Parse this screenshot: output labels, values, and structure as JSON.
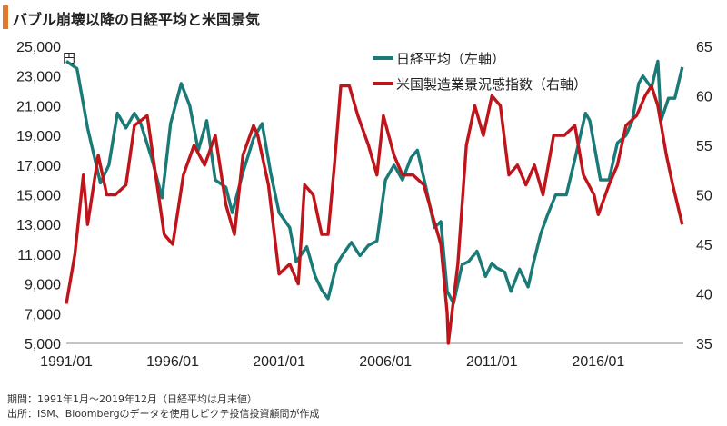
{
  "title": "バブル崩壊以降の日経平均と米国景気",
  "footer": {
    "period": "期間：1991年1月～2019年12月（日経平均は月末値）",
    "source": "出所：ISM、Bloombergのデータを使用しピクテ投信投資顧問が作成"
  },
  "colors": {
    "nikkei": "#1a7a78",
    "ism": "#c0141b",
    "title_accent": "#e07a2a"
  },
  "chart_data": {
    "type": "line",
    "title": "バブル崩壊以降の日経平均と米国景気",
    "xlabel": "",
    "ylabel_left": "円",
    "ylabel_right": "",
    "x_ticks": [
      "1991/01",
      "1996/01",
      "2001/01",
      "2006/01",
      "2011/01",
      "2016/01"
    ],
    "y_left_ticks": [
      "25,000",
      "23,000",
      "21,000",
      "19,000",
      "17,000",
      "15,000",
      "13,000",
      "11,000",
      "9,000",
      "7,000",
      "5,000"
    ],
    "y_right_ticks": [
      "65",
      "60",
      "55",
      "50",
      "45",
      "40",
      "35"
    ],
    "ylim_left": [
      5000,
      25000
    ],
    "ylim_right": [
      35,
      65
    ],
    "xlim": [
      1991.0,
      2020.0
    ],
    "legend_position": "top-right",
    "series": [
      {
        "name": "日経平均（左軸）",
        "axis": "left",
        "x": [
          1991.0,
          1991.5,
          1992.0,
          1992.6,
          1993.0,
          1993.4,
          1993.8,
          1994.2,
          1994.5,
          1995.0,
          1995.5,
          1995.9,
          1996.4,
          1996.8,
          1997.2,
          1997.6,
          1998.0,
          1998.5,
          1998.8,
          1999.3,
          1999.8,
          2000.2,
          2000.6,
          2001.0,
          2001.5,
          2001.8,
          2002.3,
          2002.7,
          2003.0,
          2003.3,
          2003.7,
          2004.0,
          2004.4,
          2004.8,
          2005.2,
          2005.6,
          2006.0,
          2006.4,
          2006.8,
          2007.2,
          2007.5,
          2007.9,
          2008.3,
          2008.6,
          2008.9,
          2009.2,
          2009.6,
          2009.9,
          2010.3,
          2010.7,
          2011.0,
          2011.2,
          2011.6,
          2011.9,
          2012.3,
          2012.7,
          2012.95,
          2013.3,
          2013.6,
          2014.0,
          2014.5,
          2014.9,
          2015.4,
          2015.6,
          2016.1,
          2016.5,
          2016.9,
          2017.3,
          2017.6,
          2017.9,
          2018.1,
          2018.5,
          2018.8,
          2018.95,
          2019.3,
          2019.6,
          2019.95
        ],
        "values": [
          24000,
          23500,
          19500,
          15800,
          17000,
          20500,
          19500,
          20500,
          19800,
          17500,
          14800,
          19800,
          22500,
          21000,
          18000,
          20000,
          16000,
          15500,
          13800,
          16500,
          18800,
          19800,
          16500,
          13800,
          12800,
          10500,
          11500,
          9500,
          8600,
          8000,
          10300,
          11000,
          11800,
          10900,
          11600,
          11900,
          16000,
          17000,
          16000,
          17500,
          18000,
          15500,
          12800,
          13200,
          8500,
          7700,
          10300,
          10500,
          11200,
          9500,
          10400,
          10100,
          9800,
          8500,
          10000,
          8800,
          10400,
          12400,
          13600,
          15000,
          15000,
          17400,
          20500,
          20000,
          16000,
          16000,
          18500,
          19000,
          20000,
          22500,
          23000,
          22200,
          24000,
          20000,
          21500,
          21500,
          23600
        ]
      },
      {
        "name": "米国製造業景況感指数（右軸）",
        "axis": "right",
        "x": [
          1991.0,
          1991.4,
          1991.8,
          1992.0,
          1992.5,
          1992.9,
          1993.3,
          1993.8,
          1994.2,
          1994.8,
          1995.2,
          1995.6,
          1996.0,
          1996.5,
          1997.0,
          1997.5,
          1998.0,
          1998.5,
          1998.9,
          1999.3,
          1999.8,
          2000.0,
          2000.5,
          2001.0,
          2001.5,
          2001.9,
          2002.2,
          2002.6,
          2003.0,
          2003.3,
          2003.6,
          2003.9,
          2004.3,
          2004.7,
          2005.2,
          2005.6,
          2005.9,
          2006.4,
          2006.8,
          2007.3,
          2007.8,
          2008.2,
          2008.6,
          2008.9,
          2008.95,
          2009.4,
          2009.8,
          2010.2,
          2010.6,
          2011.0,
          2011.4,
          2011.8,
          2012.2,
          2012.6,
          2013.0,
          2013.4,
          2013.9,
          2014.4,
          2014.9,
          2015.3,
          2015.8,
          2016.0,
          2016.5,
          2016.9,
          2017.3,
          2017.8,
          2018.2,
          2018.5,
          2018.8,
          2019.2,
          2019.5,
          2019.95
        ],
        "values": [
          39,
          44,
          52,
          47,
          54,
          50,
          50,
          51,
          57,
          58,
          52,
          46,
          45,
          52,
          55,
          53,
          56,
          49,
          46,
          54,
          57,
          56,
          51,
          42,
          43,
          41,
          51,
          50,
          46,
          46,
          53,
          61,
          61,
          58,
          55,
          52,
          58,
          54,
          52,
          52,
          51,
          48,
          45,
          38,
          35,
          43,
          55,
          59,
          56,
          60,
          59,
          52,
          53,
          51,
          53,
          50,
          56,
          56,
          57,
          52,
          50,
          48,
          51,
          53,
          57,
          58,
          60,
          61,
          59,
          54,
          51,
          47
        ]
      }
    ]
  }
}
